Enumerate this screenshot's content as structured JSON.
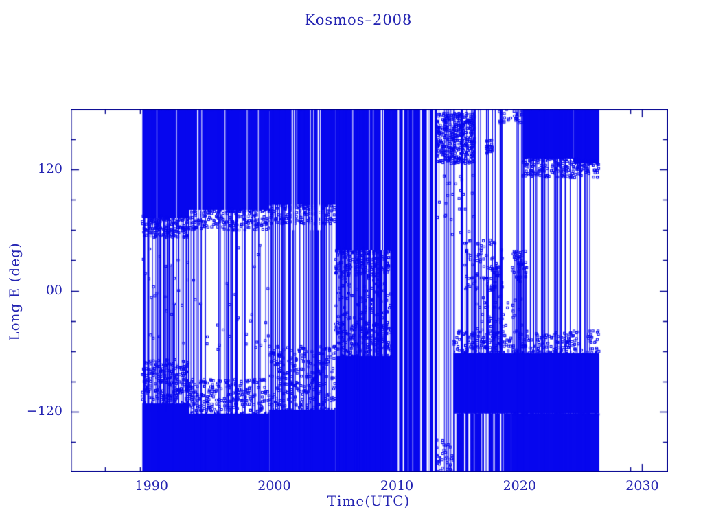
{
  "chart_data": {
    "type": "scatter",
    "title": "Kosmos–2008",
    "xlabel": "Time(UTC)",
    "ylabel": "Long E (deg)",
    "xlim": [
      1983.41,
      2032.1
    ],
    "ylim": [
      -180,
      180
    ],
    "grid": false,
    "legend": "none",
    "marker": "open-square",
    "colors": {
      "data": "#0707ee",
      "frame": "#00008f",
      "text": "#2424b2",
      "background": "#ffffff"
    },
    "x_ticks": {
      "major": [
        {
          "v": 1990,
          "label": "1990"
        },
        {
          "v": 2000,
          "label": "2000"
        },
        {
          "v": 2010,
          "label": "2010"
        },
        {
          "v": 2020,
          "label": "2020"
        },
        {
          "v": 2030,
          "label": "2030"
        }
      ],
      "minor": [
        1986.2,
        1989.05,
        2029.0
      ]
    },
    "y_ticks": {
      "major": [
        {
          "v": 120,
          "label": "120"
        },
        {
          "v": 0,
          "label": "00"
        },
        {
          "v": -120,
          "label": "−120"
        }
      ],
      "minor": [
        150,
        90,
        60,
        30,
        -30,
        -60,
        -90,
        -150
      ]
    },
    "data_span_years": [
      1989.25,
      2026.5
    ],
    "seed": 20081,
    "solid_regions": [
      {
        "t0": 1989.25,
        "t1": 1993.0,
        "lo": 72,
        "hi": 180
      },
      {
        "t0": 1993.0,
        "t1": 1999.6,
        "lo": 80,
        "hi": 180
      },
      {
        "t0": 1999.6,
        "t1": 2005.0,
        "lo": 85,
        "hi": 180
      },
      {
        "t0": 2005.0,
        "t1": 2009.5,
        "lo": 40,
        "hi": 180
      },
      {
        "t0": 2009.5,
        "t1": 2013.1,
        "lo": -180,
        "hi": 180
      },
      {
        "t0": 2020.25,
        "t1": 2024.4,
        "lo": 131,
        "hi": 180
      },
      {
        "t0": 2024.4,
        "t1": 2026.5,
        "lo": 126,
        "hi": 180
      },
      {
        "t0": 1989.25,
        "t1": 1993.0,
        "lo": -180,
        "hi": -112
      },
      {
        "t0": 1993.0,
        "t1": 1999.6,
        "lo": -180,
        "hi": -122
      },
      {
        "t0": 1999.6,
        "t1": 2005.0,
        "lo": -180,
        "hi": -118
      },
      {
        "t0": 2005.0,
        "t1": 2009.5,
        "lo": -180,
        "hi": -65
      },
      {
        "t0": 2014.6,
        "t1": 2026.5,
        "lo": -122,
        "hi": -62
      },
      {
        "t0": 2019.3,
        "t1": 2026.5,
        "lo": -180,
        "hi": -122
      },
      {
        "t0": 2014.6,
        "t1": 2019.3,
        "lo": -180,
        "hi": -122
      }
    ],
    "scatter_regions": [
      {
        "t0": 1989.25,
        "t1": 1993.0,
        "lo": 52,
        "hi": 74,
        "n": 160
      },
      {
        "t0": 1989.25,
        "t1": 1993.0,
        "lo": -110,
        "hi": -68,
        "n": 220
      },
      {
        "t0": 1993.0,
        "t1": 1999.6,
        "lo": 60,
        "hi": 82,
        "n": 200
      },
      {
        "t0": 1993.0,
        "t1": 1999.6,
        "lo": -120,
        "hi": -88,
        "n": 240
      },
      {
        "t0": 1999.6,
        "t1": 2005.0,
        "lo": 66,
        "hi": 87,
        "n": 170
      },
      {
        "t0": 1999.6,
        "t1": 2005.0,
        "lo": -116,
        "hi": -55,
        "n": 260
      },
      {
        "t0": 2005.0,
        "t1": 2009.5,
        "lo": 15,
        "hi": 42,
        "n": 130
      },
      {
        "t0": 2005.0,
        "t1": 2009.5,
        "lo": -62,
        "hi": -30,
        "n": 130
      },
      {
        "t0": 2005.0,
        "t1": 2009.5,
        "lo": -60,
        "hi": 40,
        "n": 180
      },
      {
        "t0": 2013.2,
        "t1": 2016.35,
        "lo": 126,
        "hi": 176,
        "n": 420
      },
      {
        "t0": 2013.2,
        "t1": 2016.3,
        "lo": -180,
        "hi": -148,
        "n": 70
      },
      {
        "t0": 2013.2,
        "t1": 2016.3,
        "lo": 40,
        "hi": 120,
        "n": 25
      },
      {
        "t0": 2015.5,
        "t1": 2018.6,
        "lo": 0,
        "hi": 50,
        "n": 95,
        "drop": -62
      },
      {
        "t0": 2019.4,
        "t1": 2020.6,
        "lo": 8,
        "hi": 42,
        "n": 45,
        "drop": -62
      },
      {
        "t0": 2016.4,
        "t1": 2020.2,
        "lo": -45,
        "hi": -5,
        "n": 45
      },
      {
        "t0": 2014.6,
        "t1": 2026.5,
        "lo": -62,
        "hi": -40,
        "n": 260
      },
      {
        "t0": 2020.25,
        "t1": 2026.5,
        "lo": 112,
        "hi": 131,
        "n": 190
      },
      {
        "t0": 2017.25,
        "t1": 2017.8,
        "lo": 136,
        "hi": 150,
        "n": 25
      },
      {
        "t0": 1989.3,
        "t1": 1999.6,
        "lo": -15,
        "hi": 45,
        "n": 30,
        "drop": -120
      },
      {
        "t0": 1989.3,
        "t1": 1999.6,
        "lo": -60,
        "hi": -20,
        "n": 25
      },
      {
        "t0": 2018.3,
        "t1": 2020.3,
        "lo": 166,
        "hi": 180,
        "n": 30
      }
    ],
    "vline_groups": [
      {
        "t0": 1989.3,
        "t1": 1993.0,
        "per_year": 9
      },
      {
        "t0": 1993.0,
        "t1": 1999.6,
        "per_year": 5
      },
      {
        "t0": 1999.6,
        "t1": 2005.0,
        "per_year": 10
      },
      {
        "t0": 2005.0,
        "t1": 2009.5,
        "per_year": 18
      },
      {
        "t0": 2013.1,
        "t1": 2016.3,
        "per_year": 5
      },
      {
        "t0": 2016.3,
        "t1": 2026.5,
        "per_year": 5
      }
    ],
    "solid_columns": [
      {
        "t": 1989.32,
        "w": 3
      },
      {
        "t": 2013.0,
        "w": 4
      }
    ],
    "white_streaks": [
      {
        "t0": 2009.6,
        "t1": 2013.05,
        "lo": -180,
        "hi": 180,
        "count": 9
      },
      {
        "t0": 2014.7,
        "t1": 2019.3,
        "lo": -180,
        "hi": -122,
        "count": 12
      },
      {
        "t0": 1999.8,
        "t1": 2004.6,
        "lo": 60,
        "hi": 180,
        "count": 8
      },
      {
        "t0": 1990.2,
        "t1": 1999.4,
        "lo": 72,
        "hi": 180,
        "count": 7
      },
      {
        "t0": 2005.2,
        "t1": 2009.4,
        "lo": 40,
        "hi": 180,
        "count": 5
      }
    ]
  }
}
